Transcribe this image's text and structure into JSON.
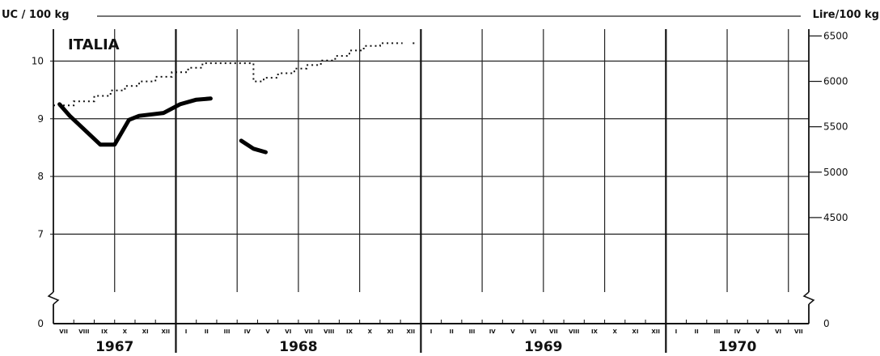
{
  "chart_data": {
    "type": "line",
    "title": "ITALIA",
    "ylabel_left": "UC / 100 kg",
    "ylabel_right": "Lire/100 kg",
    "left_ticks": [
      "7",
      "8",
      "9",
      "10"
    ],
    "left_zero": "0",
    "right_ticks": [
      "4500",
      "5000",
      "5500",
      "6000",
      "6500"
    ],
    "right_zero": "0",
    "ylim_left": [
      6.5,
      10.75
    ],
    "ylim_right": [
      4000,
      6700
    ],
    "grid": true,
    "months": [
      "VII",
      "VIII",
      "IX",
      "X",
      "XI",
      "XII",
      "I",
      "II",
      "III",
      "IV",
      "V",
      "VI",
      "VII",
      "VIII",
      "IX",
      "X",
      "XI",
      "XII",
      "I",
      "II",
      "III",
      "IV",
      "V",
      "VI",
      "VII",
      "VIII",
      "IX",
      "X",
      "XI",
      "XII",
      "I",
      "II",
      "III",
      "IV",
      "V",
      "VI",
      "VII"
    ],
    "years": [
      {
        "label": "1967",
        "start": 0,
        "end": 6
      },
      {
        "label": "1968",
        "start": 6,
        "end": 18
      },
      {
        "label": "1969",
        "start": 18,
        "end": 30
      },
      {
        "label": "1970",
        "start": 30,
        "end": 37
      }
    ],
    "series": [
      {
        "axis": "left",
        "style": "solid-thick",
        "segments": [
          [
            [
              0.3,
              9.25
            ],
            [
              0.8,
              9.05
            ],
            [
              2.3,
              8.55
            ],
            [
              3.0,
              8.55
            ],
            [
              3.7,
              8.98
            ],
            [
              4.2,
              9.05
            ],
            [
              5.4,
              9.1
            ],
            [
              6.2,
              9.25
            ],
            [
              7.0,
              9.33
            ],
            [
              7.7,
              9.35
            ]
          ],
          [
            [
              9.2,
              8.62
            ],
            [
              9.8,
              8.48
            ],
            [
              10.4,
              8.42
            ]
          ]
        ]
      },
      {
        "axis": "right",
        "style": "dotted-step",
        "segments": [
          [
            [
              0.0,
              5735
            ],
            [
              1.0,
              5735
            ],
            [
              1.0,
              5780
            ],
            [
              2.0,
              5780
            ],
            [
              2.0,
              5840
            ],
            [
              2.8,
              5840
            ],
            [
              2.8,
              5900
            ],
            [
              3.5,
              5900
            ],
            [
              3.5,
              5950
            ],
            [
              4.2,
              5950
            ],
            [
              4.2,
              6000
            ],
            [
              5.0,
              6000
            ],
            [
              5.0,
              6050
            ],
            [
              5.8,
              6050
            ],
            [
              5.8,
              6100
            ],
            [
              6.6,
              6100
            ],
            [
              6.6,
              6150
            ],
            [
              7.3,
              6150
            ],
            [
              7.3,
              6200
            ],
            [
              9.8,
              6200
            ],
            [
              9.8,
              6000
            ],
            [
              10.3,
              6000
            ],
            [
              10.3,
              6040
            ],
            [
              11.0,
              6040
            ],
            [
              11.0,
              6090
            ],
            [
              11.8,
              6090
            ],
            [
              11.8,
              6140
            ],
            [
              12.4,
              6140
            ],
            [
              12.4,
              6180
            ],
            [
              13.1,
              6180
            ],
            [
              13.1,
              6230
            ],
            [
              13.8,
              6230
            ],
            [
              13.8,
              6280
            ],
            [
              14.5,
              6280
            ],
            [
              14.5,
              6340
            ],
            [
              15.2,
              6340
            ],
            [
              15.2,
              6390
            ],
            [
              16.0,
              6390
            ],
            [
              16.0,
              6420
            ],
            [
              17.1,
              6420
            ]
          ],
          [
            [
              17.6,
              6420
            ],
            [
              17.7,
              6420
            ]
          ]
        ]
      }
    ]
  }
}
